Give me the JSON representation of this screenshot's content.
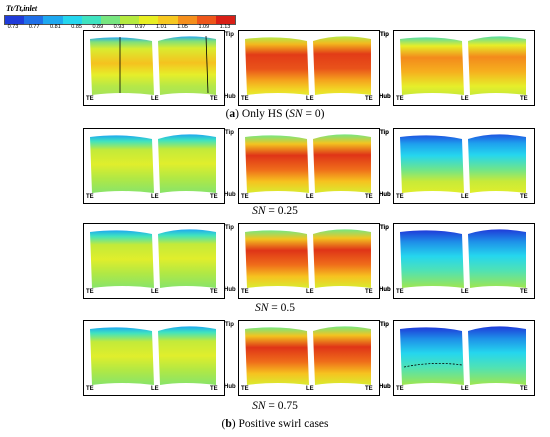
{
  "colorbar": {
    "title": "Tt/Tt,inlet",
    "ticks": [
      "0.73",
      "0.77",
      "0.81",
      "0.85",
      "0.89",
      "0.93",
      "0.97",
      "1.01",
      "1.05",
      "1.09",
      "1.13"
    ],
    "colors": [
      "#1f3bd9",
      "#1f6fe8",
      "#1ea8f0",
      "#25d6ee",
      "#3fe3c0",
      "#77e680",
      "#b5ea3f",
      "#e8ee22",
      "#f7c820",
      "#f58f1c",
      "#ee561a",
      "#d91f16"
    ]
  },
  "labels": {
    "tip": "Tip",
    "hub": "Hub",
    "te": "TE",
    "le": "LE"
  },
  "captions": {
    "row1_label": "a",
    "row1_text": "Only HS (",
    "row1_sn": "SN",
    "row1_tail": " = 0)",
    "row2_sn": "SN",
    "row2_val": " = 0.25",
    "row3_sn": "SN",
    "row3_val": " = 0.5",
    "row4_sn": "SN",
    "row4_val": " = 0.75",
    "bottom_label": "b",
    "bottom_text": "Positive swirl cases"
  }
}
